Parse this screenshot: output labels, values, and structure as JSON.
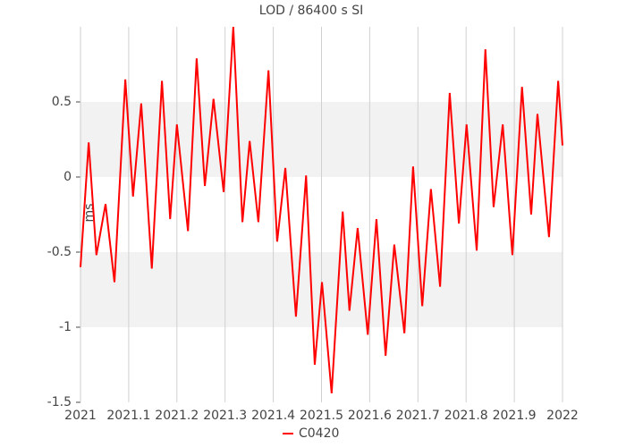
{
  "chart_data": {
    "type": "line",
    "title": "LOD / 86400 s SI",
    "y_label": "ms",
    "x": [
      2021.0,
      2021.017,
      2021.033,
      2021.052,
      2021.0705,
      2021.093,
      2021.109,
      2021.126,
      2021.148,
      2021.169,
      2021.186,
      2021.2,
      2021.223,
      2021.241,
      2021.258,
      2021.276,
      2021.297,
      2021.317,
      2021.336,
      2021.351,
      2021.369,
      2021.39,
      2021.408,
      2021.425,
      2021.447,
      2021.468,
      2021.486,
      2021.501,
      2021.521,
      2021.544,
      2021.558,
      2021.575,
      2021.596,
      2021.614,
      2021.633,
      2021.651,
      2021.672,
      2021.69,
      2021.709,
      2021.727,
      2021.746,
      2021.766,
      2021.785,
      2021.801,
      2021.822,
      2021.84,
      2021.857,
      2021.876,
      2021.896,
      2021.916,
      2021.935,
      2021.948,
      2021.972,
      2021.991,
      2022.0
    ],
    "series": [
      {
        "name": "C0420",
        "color": "#ff0000",
        "values": [
          -0.6,
          0.23,
          -0.52,
          -0.18,
          -0.7,
          0.65,
          -0.13,
          0.49,
          -0.61,
          0.64,
          -0.28,
          0.35,
          -0.36,
          0.79,
          -0.06,
          0.52,
          -0.1,
          1.0,
          -0.3,
          0.24,
          -0.3,
          0.71,
          -0.43,
          0.06,
          -0.93,
          0.01,
          -1.25,
          -0.7,
          -1.44,
          -0.23,
          -0.89,
          -0.34,
          -1.05,
          -0.28,
          -1.19,
          -0.45,
          -1.04,
          0.07,
          -0.86,
          -0.08,
          -0.73,
          0.56,
          -0.31,
          0.35,
          -0.49,
          0.85,
          -0.2,
          0.35,
          -0.52,
          0.6,
          -0.25,
          0.42,
          -0.4,
          0.64,
          0.21
        ]
      }
    ],
    "xlim": [
      2021,
      2022
    ],
    "xticks": [
      2021,
      2021.1,
      2021.2,
      2021.3,
      2021.4,
      2021.5,
      2021.6,
      2021.7,
      2021.8,
      2021.9,
      2022
    ],
    "ylim": [
      -1.5,
      1.0
    ],
    "yticks": [
      -1.5,
      -1,
      -0.5,
      0,
      0.5
    ],
    "grid": true,
    "alternating_bands": true,
    "band_color": "#f2f2f2",
    "legend": "bottom"
  }
}
